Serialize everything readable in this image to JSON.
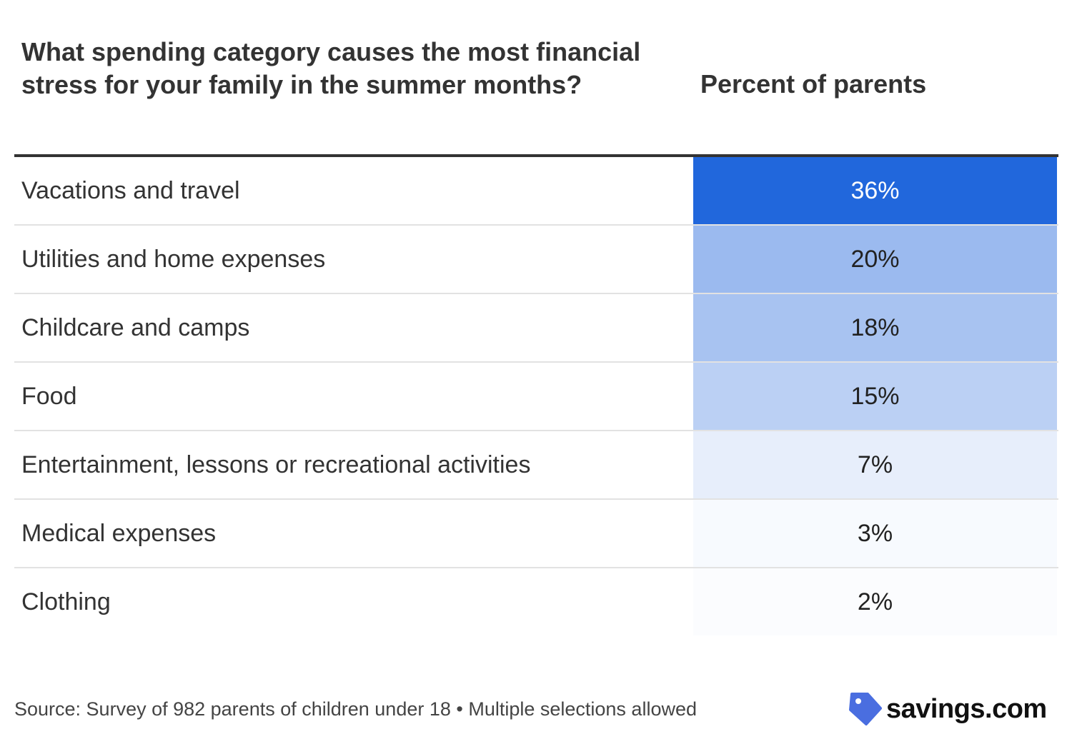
{
  "header": {
    "question": "What spending category causes the most financial stress for your family in the summer months?",
    "value_column": "Percent of parents"
  },
  "chart_data": {
    "type": "table",
    "title": "What spending category causes the most financial stress for your family in the summer months?",
    "columns": [
      "What spending category causes the most financial stress for your family in the summer months?",
      "Percent of parents"
    ],
    "categories": [
      "Vacations and travel",
      "Utilities and home expenses",
      "Childcare and camps",
      "Food",
      "Entertainment, lessons or recreational activities",
      "Medical expenses",
      "Clothing"
    ],
    "values": [
      36,
      20,
      18,
      15,
      7,
      3,
      2
    ],
    "value_labels": [
      "36%",
      "20%",
      "18%",
      "15%",
      "7%",
      "3%",
      "2%"
    ],
    "unit": "%",
    "heat_color": "#2167dc"
  },
  "footer": {
    "source": "Source: Survey of 982 parents of children under 18 • Multiple selections allowed"
  },
  "logo": {
    "text": "savings.com",
    "icon": "price-tag-icon",
    "color": "#4a6ee0"
  }
}
